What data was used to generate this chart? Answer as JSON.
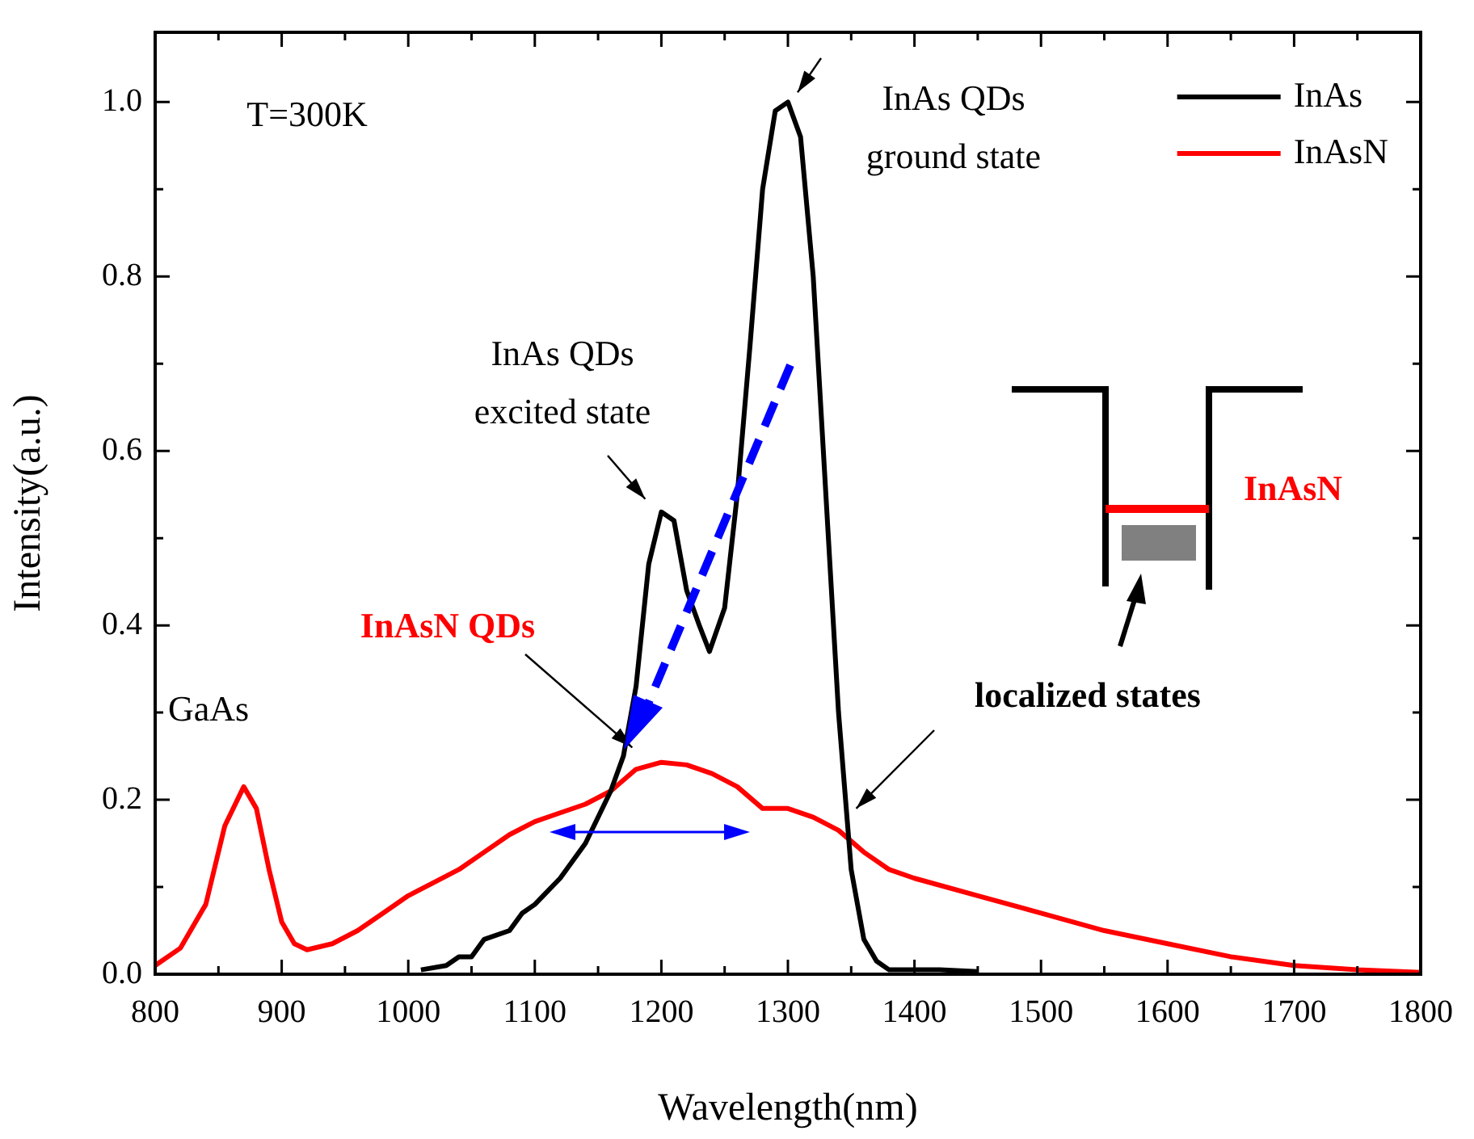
{
  "chart_data": {
    "type": "line",
    "xlabel": "Wavelength(nm)",
    "ylabel": "Intensity(a.u.)",
    "xlim": [
      800,
      1800
    ],
    "ylim": [
      0,
      1.08
    ],
    "xticks": [
      800,
      {
        "value": 850,
        "label": null
      },
      900,
      {
        "value": 950,
        "label": null
      },
      1000,
      {
        "value": 1050,
        "label": null
      },
      1100,
      {
        "value": 1150,
        "label": null
      },
      1200,
      {
        "value": 1250,
        "label": null
      },
      1300,
      {
        "value": 1350,
        "label": null
      },
      1400,
      {
        "value": 1450,
        "label": null
      },
      1500,
      {
        "value": 1550,
        "label": null
      },
      1600,
      {
        "value": 1650,
        "label": null
      },
      1700,
      {
        "value": 1750,
        "label": null
      },
      1800
    ],
    "yticks": [
      {
        "value": 0,
        "label": "0.0"
      },
      {
        "value": 0.1,
        "label": null
      },
      {
        "value": 0.2,
        "label": "0.2"
      },
      {
        "value": 0.3,
        "label": null
      },
      {
        "value": 0.4,
        "label": "0.4"
      },
      {
        "value": 0.5,
        "label": null
      },
      {
        "value": 0.6,
        "label": "0.6"
      },
      {
        "value": 0.7,
        "label": null
      },
      {
        "value": 0.8,
        "label": "0.8"
      },
      {
        "value": 0.9,
        "label": null
      },
      {
        "value": 1.0,
        "label": "1.0"
      }
    ],
    "legend": "top right",
    "grid": false,
    "marker": "none",
    "line_style": "solid",
    "series": [
      {
        "name": "InAs",
        "color": "#000000",
        "x": [
          1010,
          1030,
          1040,
          1050,
          1060,
          1080,
          1090,
          1100,
          1120,
          1140,
          1160,
          1170,
          1180,
          1190,
          1200,
          1210,
          1220,
          1230,
          1238,
          1250,
          1260,
          1270,
          1280,
          1290,
          1300,
          1310,
          1320,
          1330,
          1340,
          1350,
          1360,
          1370,
          1380,
          1400,
          1420,
          1450
        ],
        "values": [
          0.005,
          0.01,
          0.02,
          0.02,
          0.04,
          0.05,
          0.07,
          0.08,
          0.11,
          0.15,
          0.21,
          0.25,
          0.33,
          0.47,
          0.53,
          0.52,
          0.44,
          0.4,
          0.37,
          0.42,
          0.55,
          0.72,
          0.9,
          0.99,
          1.0,
          0.96,
          0.8,
          0.55,
          0.3,
          0.12,
          0.04,
          0.015,
          0.005,
          0.005,
          0.005,
          0.003
        ]
      },
      {
        "name": "InAsN",
        "color": "#ff0000",
        "x": [
          800,
          820,
          840,
          855,
          870,
          880,
          890,
          900,
          910,
          920,
          940,
          960,
          980,
          1000,
          1020,
          1040,
          1060,
          1080,
          1100,
          1120,
          1140,
          1160,
          1180,
          1200,
          1220,
          1240,
          1260,
          1280,
          1300,
          1320,
          1340,
          1360,
          1380,
          1400,
          1450,
          1500,
          1550,
          1600,
          1650,
          1700,
          1750,
          1800
        ],
        "values": [
          0.01,
          0.03,
          0.08,
          0.17,
          0.215,
          0.19,
          0.12,
          0.06,
          0.035,
          0.028,
          0.035,
          0.05,
          0.07,
          0.09,
          0.105,
          0.12,
          0.14,
          0.16,
          0.175,
          0.185,
          0.195,
          0.21,
          0.235,
          0.243,
          0.24,
          0.23,
          0.215,
          0.19,
          0.19,
          0.18,
          0.165,
          0.14,
          0.12,
          0.11,
          0.09,
          0.07,
          0.05,
          0.035,
          0.02,
          0.01,
          0.005,
          0.002
        ]
      }
    ],
    "annotations": [
      "T=300K",
      "GaAs",
      {
        "text": "InAs QDs\nexcited state",
        "x": 1200,
        "y": 0.53
      },
      {
        "text": "InAs QDs\nground state",
        "x": 1300,
        "y": 1.0
      },
      {
        "text": "InAsN QDs",
        "x": 1177,
        "y": 0.26
      },
      {
        "text": "localized states",
        "x": 1354,
        "y": 0.19
      },
      "InAsN"
    ]
  }
}
